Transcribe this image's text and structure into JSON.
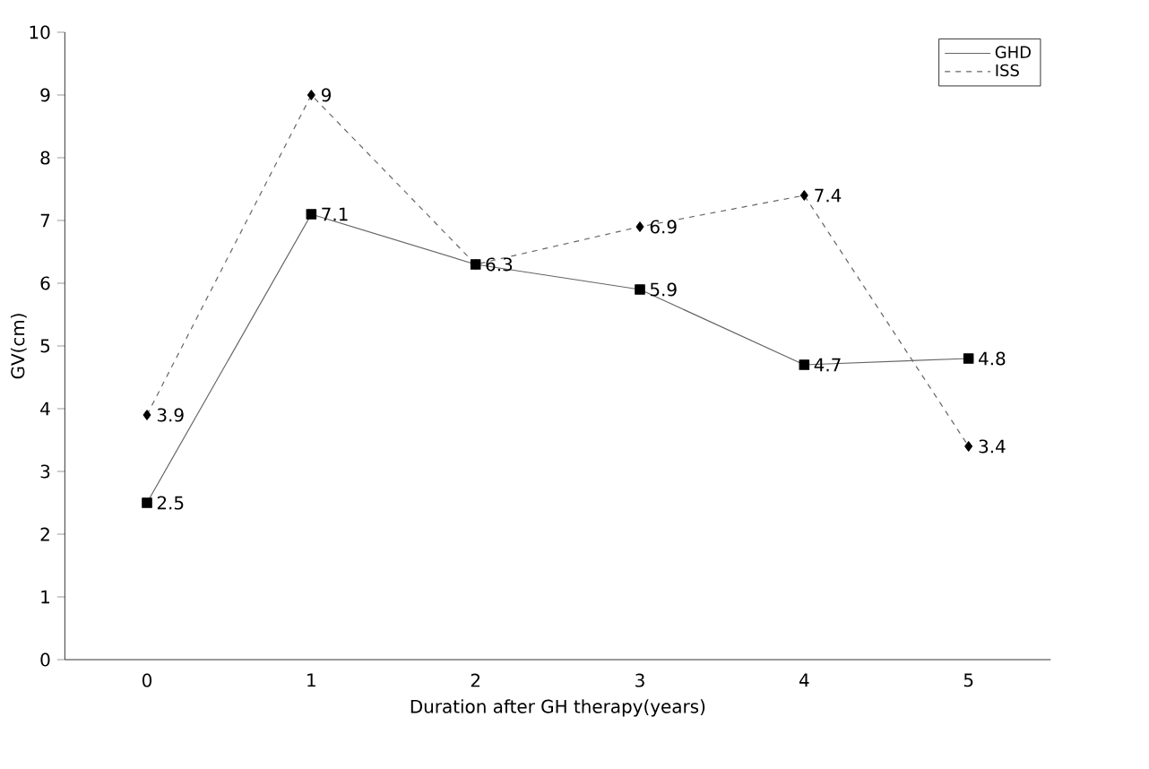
{
  "chart_data": {
    "type": "line",
    "xlabel": "Duration after GH therapy(years)",
    "ylabel": "GV(cm)",
    "categories": [
      "0",
      "1",
      "2",
      "3",
      "4",
      "5"
    ],
    "ylim": [
      0,
      10
    ],
    "yticks": [
      0,
      1,
      2,
      3,
      4,
      5,
      6,
      7,
      8,
      9,
      10
    ],
    "grid": false,
    "legend": "top right",
    "series": [
      {
        "name": "GHD",
        "color": "#000000",
        "marker": "square",
        "line_style": "solid",
        "values": [
          2.5,
          7.1,
          6.3,
          5.9,
          4.7,
          4.8
        ],
        "value_labels": [
          "2.5",
          "7.1",
          "6.3",
          "5.9",
          "4.7",
          "4.8"
        ]
      },
      {
        "name": "ISS",
        "color": "#000000",
        "marker": "diamond",
        "line_style": "dashed",
        "values": [
          3.9,
          9,
          6.3,
          6.9,
          7.4,
          3.4
        ],
        "value_labels": [
          "3.9",
          "9",
          null,
          "6.9",
          "7.4",
          "3.4"
        ]
      }
    ]
  }
}
